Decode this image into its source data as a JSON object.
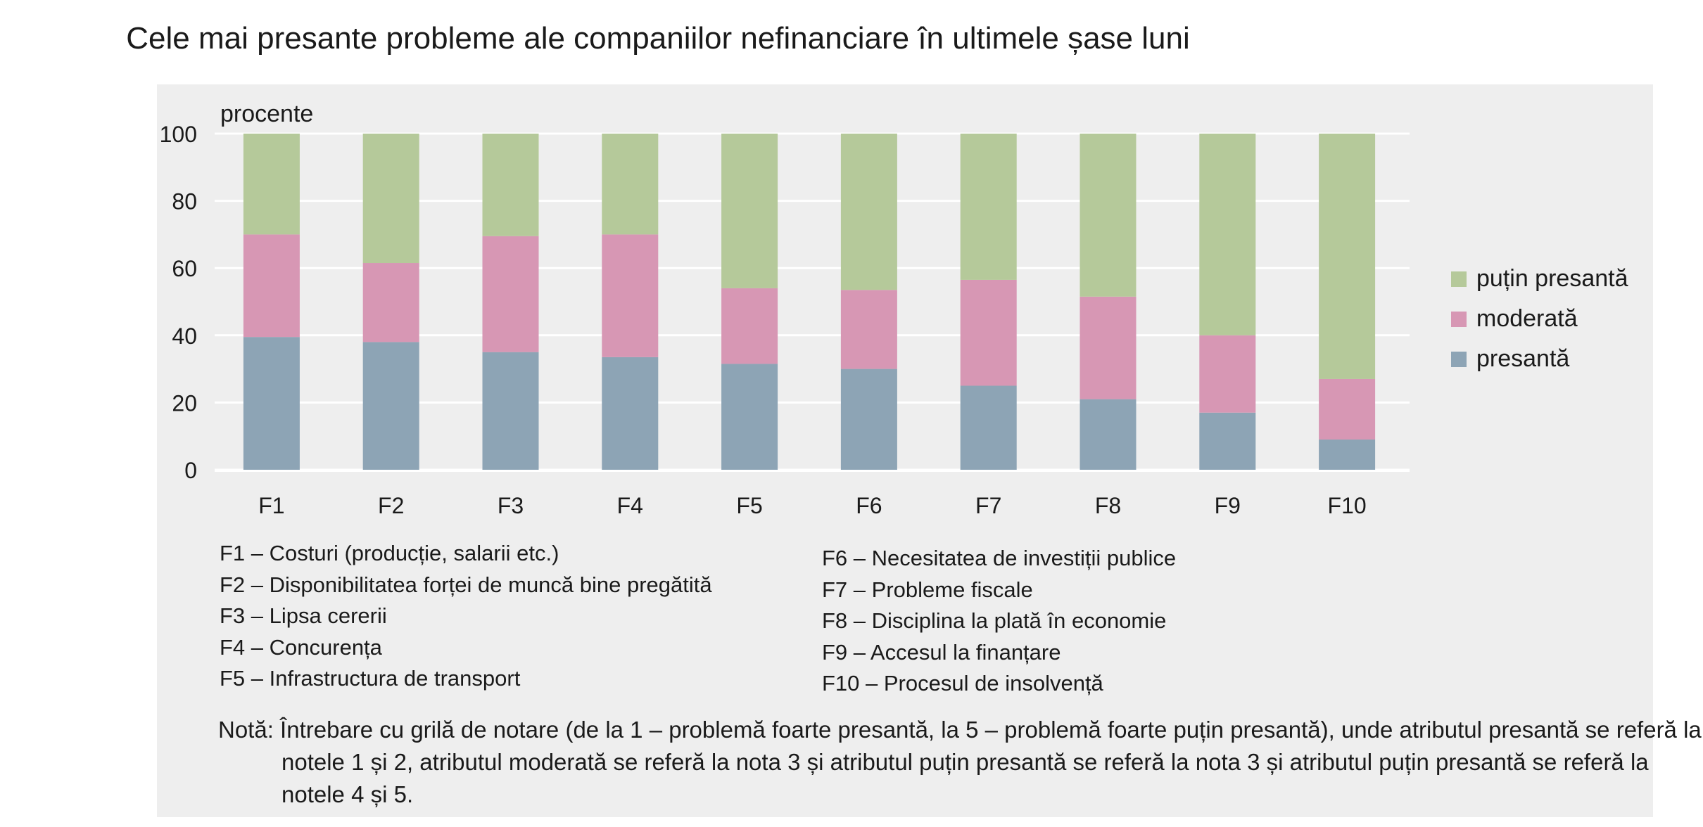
{
  "chart_data": {
    "type": "bar",
    "stacked": true,
    "title": "Cele mai presante probleme ale companiilor nefinanciare în ultimele șase luni",
    "ylabel": "procente",
    "ylim": [
      0,
      100
    ],
    "yticks": [
      0,
      20,
      40,
      60,
      80,
      100
    ],
    "grid": true,
    "legend_position": "right",
    "categories": [
      "F1",
      "F2",
      "F3",
      "F4",
      "F5",
      "F6",
      "F7",
      "F8",
      "F9",
      "F10"
    ],
    "series": [
      {
        "name": "presantă",
        "color": "#8da4b5",
        "values": [
          39.5,
          38,
          35,
          33.5,
          31.5,
          30,
          25,
          21,
          17,
          9
        ]
      },
      {
        "name": "moderată",
        "color": "#d797b4",
        "values": [
          30.5,
          23.5,
          34.5,
          36.5,
          22.5,
          23.5,
          31.5,
          30.5,
          23,
          18
        ]
      },
      {
        "name": "puțin presantă",
        "color": "#b5c99a",
        "values": [
          30,
          38.5,
          30.5,
          30,
          46,
          46.5,
          43.5,
          48.5,
          60,
          73
        ]
      }
    ],
    "legend_order": [
      "puțin presantă",
      "moderată",
      "presantă"
    ]
  },
  "definitions": {
    "left": [
      "F1 – Costuri (producție, salarii etc.)",
      "F2 – Disponibilitatea forței de muncă bine pregătită",
      "F3 – Lipsa cererii",
      "F4 – Concurența",
      "F5 – Infrastructura de transport"
    ],
    "right": [
      "F6 – Necesitatea de investiții publice",
      "F7 – Probleme fiscale",
      "F8 – Disciplina la plată în economie",
      "F9 – Accesul la finanțare",
      "F10 – Procesul de insolvență"
    ]
  },
  "note": "Notă: Întrebare cu grilă de notare (de la 1 – problemă foarte presantă, la 5 – problemă foarte puțin presantă), unde atributul presantă se referă la notele 1 și 2, atributul moderată se referă la nota 3 și atributul puțin presantă se referă la nota 3 și atributul puțin presantă se referă la notele 4 și 5."
}
